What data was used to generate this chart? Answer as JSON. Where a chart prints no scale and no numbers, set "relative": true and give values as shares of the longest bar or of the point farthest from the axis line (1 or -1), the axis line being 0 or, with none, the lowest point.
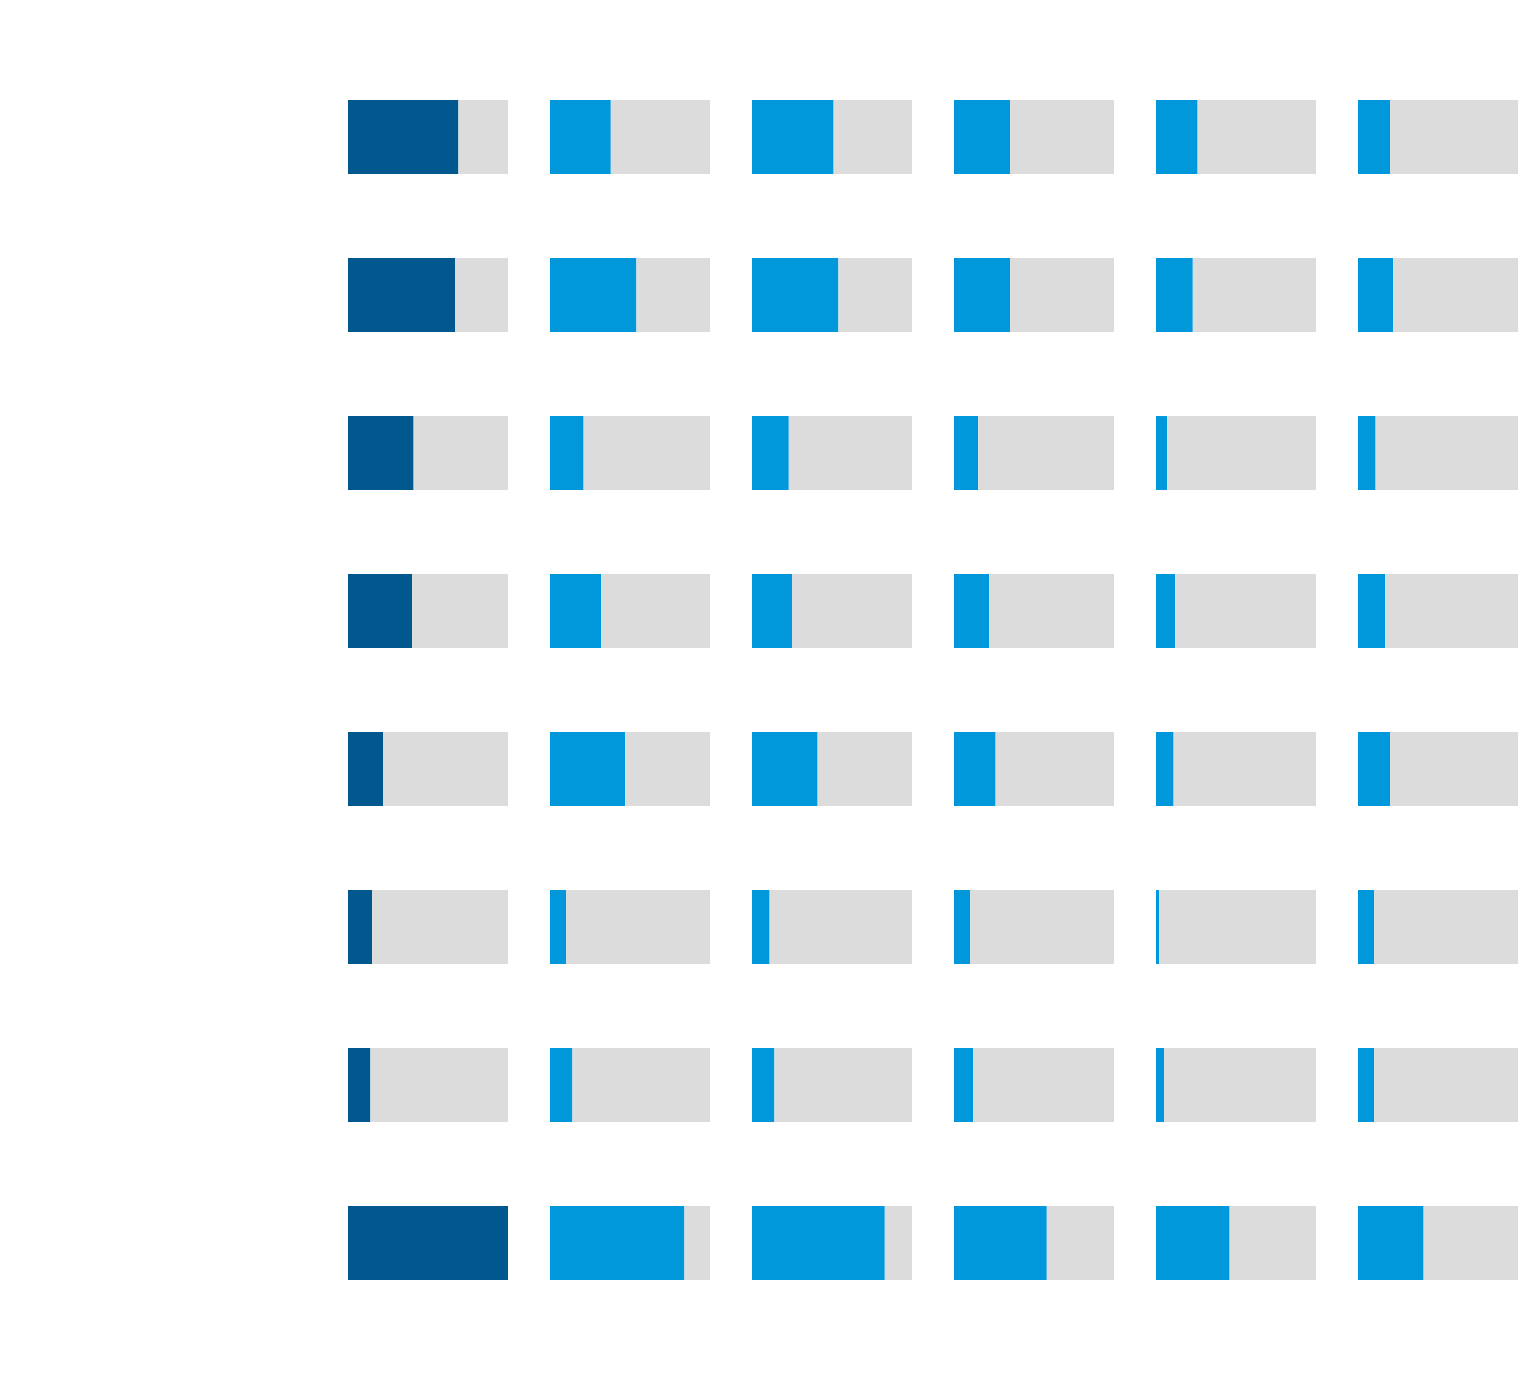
{
  "chart_data": [
    {
      "type": "bar",
      "orientation": "horizontal",
      "stacked": true,
      "relative": true,
      "categories": [
        null,
        null,
        null,
        null,
        null,
        null,
        null,
        null
      ],
      "series": [
        {
          "color": "#00588f",
          "values": [
            0.69,
            0.67,
            0.41,
            0.4,
            0.22,
            0.15,
            0.14,
            1.0
          ]
        },
        {
          "color": "#dcdcdc",
          "values": [
            0.31,
            0.33,
            0.59,
            0.6,
            0.78,
            0.85,
            0.86,
            0.0
          ]
        }
      ]
    },
    {
      "type": "bar",
      "orientation": "horizontal",
      "stacked": true,
      "relative": true,
      "categories": [
        null,
        null,
        null,
        null,
        null,
        null,
        null,
        null
      ],
      "series": [
        {
          "color": "#0097db",
          "values": [
            0.38,
            0.54,
            0.21,
            0.32,
            0.47,
            0.1,
            0.14,
            0.84
          ]
        },
        {
          "color": "#dcdcdc",
          "values": [
            0.62,
            0.46,
            0.79,
            0.68,
            0.53,
            0.9,
            0.86,
            0.16
          ]
        }
      ]
    },
    {
      "type": "bar",
      "orientation": "horizontal",
      "stacked": true,
      "relative": true,
      "categories": [
        null,
        null,
        null,
        null,
        null,
        null,
        null,
        null
      ],
      "series": [
        {
          "color": "#0097db",
          "values": [
            0.51,
            0.54,
            0.23,
            0.25,
            0.41,
            0.11,
            0.14,
            0.83
          ]
        },
        {
          "color": "#dcdcdc",
          "values": [
            0.49,
            0.46,
            0.77,
            0.75,
            0.59,
            0.89,
            0.86,
            0.17
          ]
        }
      ]
    },
    {
      "type": "bar",
      "orientation": "horizontal",
      "stacked": true,
      "relative": true,
      "categories": [
        null,
        null,
        null,
        null,
        null,
        null,
        null,
        null
      ],
      "series": [
        {
          "color": "#0097db",
          "values": [
            0.35,
            0.35,
            0.15,
            0.22,
            0.26,
            0.1,
            0.12,
            0.58
          ]
        },
        {
          "color": "#dcdcdc",
          "values": [
            0.65,
            0.65,
            0.85,
            0.78,
            0.74,
            0.9,
            0.88,
            0.42
          ]
        }
      ]
    },
    {
      "type": "bar",
      "orientation": "horizontal",
      "stacked": true,
      "relative": true,
      "categories": [
        null,
        null,
        null,
        null,
        null,
        null,
        null,
        null
      ],
      "series": [
        {
          "color": "#0097db",
          "values": [
            0.26,
            0.23,
            0.07,
            0.12,
            0.11,
            0.02,
            0.05,
            0.46
          ]
        },
        {
          "color": "#dcdcdc",
          "values": [
            0.74,
            0.77,
            0.93,
            0.88,
            0.89,
            0.98,
            0.95,
            0.54
          ]
        }
      ]
    },
    {
      "type": "bar",
      "orientation": "horizontal",
      "stacked": true,
      "relative": true,
      "categories": [
        null,
        null,
        null,
        null,
        null,
        null,
        null,
        null
      ],
      "series": [
        {
          "color": "#0097db",
          "values": [
            0.2,
            0.22,
            0.11,
            0.17,
            0.2,
            0.1,
            0.1,
            0.41
          ]
        },
        {
          "color": "#dcdcdc",
          "values": [
            0.8,
            0.78,
            0.89,
            0.83,
            0.8,
            0.9,
            0.9,
            0.59
          ]
        }
      ]
    }
  ]
}
